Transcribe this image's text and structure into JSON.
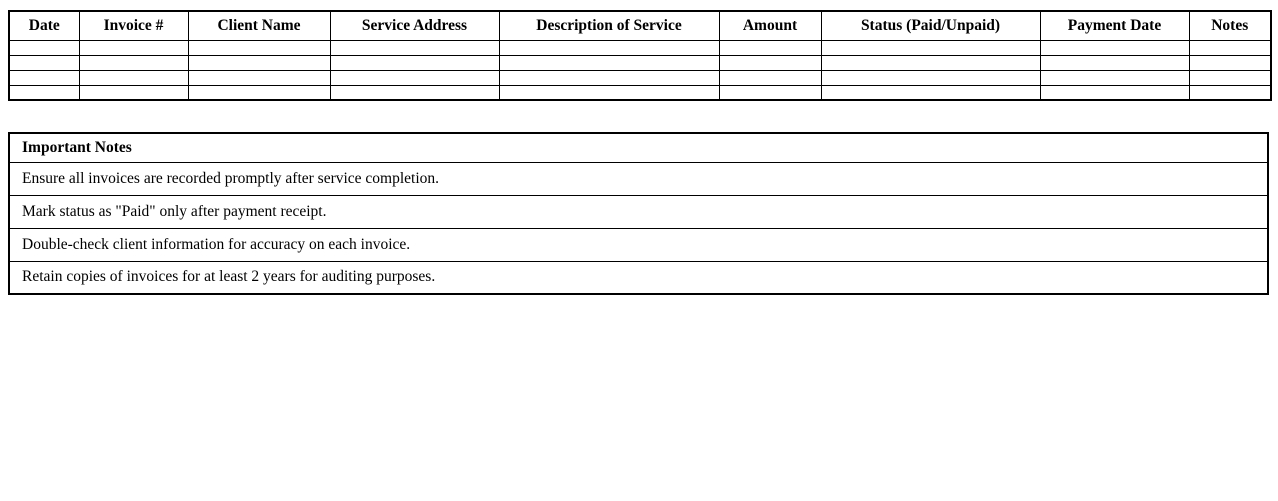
{
  "document": {
    "invoice_table": {
      "columns": [
        "Date",
        "Invoice #",
        "Client Name",
        "Service Address",
        "Description of Service",
        "Amount",
        "Status (Paid/Unpaid)",
        "Payment Date",
        "Notes"
      ],
      "empty_row_count": 4
    },
    "notes_table": {
      "title": "Important Notes",
      "notes": [
        "Ensure all invoices are recorded promptly after service completion.",
        "Mark status as \"Paid\" only after payment receipt.",
        "Double-check client information for accuracy on each invoice.",
        "Retain copies of invoices for at least 2 years for auditing purposes."
      ]
    }
  },
  "colors": {
    "border": "#000000",
    "text": "#000000",
    "background": "#ffffff"
  }
}
